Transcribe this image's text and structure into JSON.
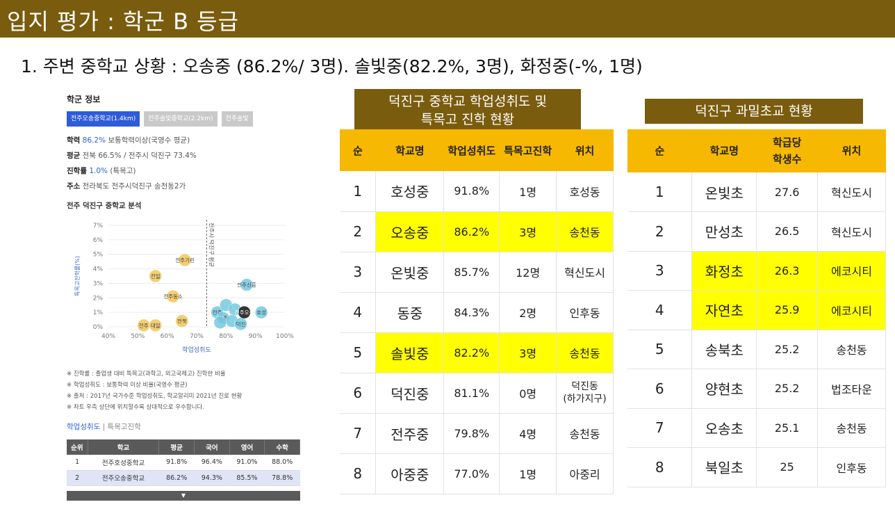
{
  "title": "입지 평가 : 학군 B 등급",
  "subtitle": "1. 주변 중학교 상황 : 오송중 (86.2%/ 3명). 솔빛중(82.2%, 3명), 화정중(-%, 1명)",
  "left_panel": {
    "heading": "학군 정보",
    "tabs": [
      "전주오송중학교(1.4km)",
      "전주솔빛중학교(2.2km)",
      "전주솔빛"
    ],
    "info": {
      "rate_label": "학력",
      "rate_value": "86.2%",
      "rate_suffix": "보통학력이상(국영수 평균)",
      "avg_label": "평균",
      "avg_value": "전북 66.5% / 전주시 덕진구 73.4%",
      "adv_label": "진학률",
      "adv_value": "1.0%",
      "adv_suffix": "(특목고)",
      "addr_label": "주소",
      "addr_value": "전라북도 전주시덕진구 송천동2가"
    },
    "chart_title": "전주 덕진구 중학교 분석",
    "notes": [
      "※ 진학률 : 졸업생 대비 특목고(과학고, 외고국제고) 진학한 비율",
      "※ 학업성취도 : 보통학력 이상 비율(국영수 평균)",
      "※ 출처 : 2017년 국가수준 학업성취도, 학교알리미 2021년 진로 현황",
      "※ 차트 우측 상단에 위치할수록 상대적으로 우수합니다."
    ],
    "subtabs": [
      "학업성취도",
      "특목고진학"
    ],
    "mini_headers": [
      "순위",
      "학교",
      "평균",
      "국어",
      "영어",
      "수학"
    ],
    "mini_rows": [
      [
        "1",
        "전주호성중학교",
        "91.8%",
        "96.4%",
        "91.0%",
        "88.0%"
      ],
      [
        "2",
        "전주오송중학교",
        "86.2%",
        "94.3%",
        "85.5%",
        "78.8%"
      ]
    ],
    "mini_foot": "▼"
  },
  "chart_data": {
    "type": "scatter",
    "title": "",
    "xlabel": "학업성취도",
    "ylabel": "특목고진학률(%)",
    "xlim": [
      40,
      100
    ],
    "ylim": [
      0,
      7
    ],
    "x_ticks": [
      "40%",
      "50%",
      "60%",
      "70%",
      "80%",
      "90%",
      "100%"
    ],
    "y_ticks": [
      "0%",
      "1%",
      "2%",
      "3%",
      "4%",
      "5%",
      "6%",
      "7%"
    ],
    "ref_line": {
      "x": 73.4,
      "label": "전주시 덕진구 평균"
    },
    "series": [
      {
        "color": "#f1c75b",
        "points": [
          {
            "x": 66,
            "y": 4.6,
            "label": "전주기린"
          },
          {
            "x": 56,
            "y": 3.5,
            "label": "전일"
          },
          {
            "x": 62,
            "y": 2.1,
            "label": "전주동소"
          },
          {
            "x": 65,
            "y": 0.4,
            "label": "전북"
          },
          {
            "x": 52,
            "y": 0.1,
            "label": "전주"
          },
          {
            "x": 56,
            "y": 0.1,
            "label": "대일"
          }
        ]
      },
      {
        "color": "#77c9e0",
        "points": [
          {
            "x": 87,
            "y": 2.9,
            "label": "전주신흥"
          },
          {
            "x": 92,
            "y": 1.0,
            "label": "호성"
          },
          {
            "x": 77,
            "y": 1.0,
            "label": "전주"
          },
          {
            "x": 80,
            "y": 1.5,
            "label": ""
          },
          {
            "x": 83,
            "y": 1.2,
            "label": ""
          },
          {
            "x": 79,
            "y": 0.6,
            "label": "동중"
          },
          {
            "x": 82,
            "y": 0.4,
            "label": ""
          },
          {
            "x": 85,
            "y": 0.2,
            "label": "덕진"
          },
          {
            "x": 78,
            "y": 0.3,
            "label": ""
          }
        ]
      },
      {
        "color": "#111111",
        "points": [
          {
            "x": 86.2,
            "y": 1.0,
            "label": "전주오송"
          }
        ]
      }
    ]
  },
  "middle": {
    "caption_line1": "덕진구 중학교 학업성취도 및",
    "caption_line2": "특목고 진학 현황",
    "headers": [
      "순",
      "학교명",
      "학업성취도",
      "특목고진학",
      "위치"
    ],
    "rows": [
      {
        "n": "1",
        "name": "호성중",
        "rate": "91.8%",
        "adv": "1명",
        "loc": "호성동",
        "hl": false
      },
      {
        "n": "2",
        "name": "오송중",
        "rate": "86.2%",
        "adv": "3명",
        "loc": "송천동",
        "hl": true
      },
      {
        "n": "3",
        "name": "온빛중",
        "rate": "85.7%",
        "adv": "12명",
        "loc": "혁신도시",
        "hl": false
      },
      {
        "n": "4",
        "name": "동중",
        "rate": "84.3%",
        "adv": "2명",
        "loc": "인후동",
        "hl": false
      },
      {
        "n": "5",
        "name": "솔빛중",
        "rate": "82.2%",
        "adv": "3명",
        "loc": "송천동",
        "hl": true
      },
      {
        "n": "6",
        "name": "덕진중",
        "rate": "81.1%",
        "adv": "0명",
        "loc": "덕진동",
        "loc2": "(하가지구)",
        "hl": false
      },
      {
        "n": "7",
        "name": "전주중",
        "rate": "79.8%",
        "adv": "4명",
        "loc": "송천동",
        "hl": false
      },
      {
        "n": "8",
        "name": "아중중",
        "rate": "77.0%",
        "adv": "1명",
        "loc": "아중리",
        "hl": false
      }
    ]
  },
  "right": {
    "caption": "덕진구 과밀초교 현황",
    "headers": [
      "순",
      "학교명",
      "학급당",
      "학생수",
      "위치"
    ],
    "rows": [
      {
        "n": "1",
        "name": "온빛초",
        "val": "27.6",
        "loc": "혁신도시",
        "hl": false
      },
      {
        "n": "2",
        "name": "만성초",
        "val": "26.5",
        "loc": "혁신도시",
        "hl": false
      },
      {
        "n": "3",
        "name": "화정초",
        "val": "26.3",
        "loc": "에코시티",
        "hl": true
      },
      {
        "n": "4",
        "name": "자연초",
        "val": "25.9",
        "loc": "에코시티",
        "hl": true
      },
      {
        "n": "5",
        "name": "송북초",
        "val": "25.2",
        "loc": "송천동",
        "hl": false
      },
      {
        "n": "6",
        "name": "양현초",
        "val": "25.2",
        "loc": "법조타운",
        "hl": false
      },
      {
        "n": "7",
        "name": "오송초",
        "val": "25.1",
        "loc": "송천동",
        "hl": false
      },
      {
        "n": "8",
        "name": "북일초",
        "val": "25",
        "loc": "인후동",
        "hl": false
      }
    ]
  }
}
